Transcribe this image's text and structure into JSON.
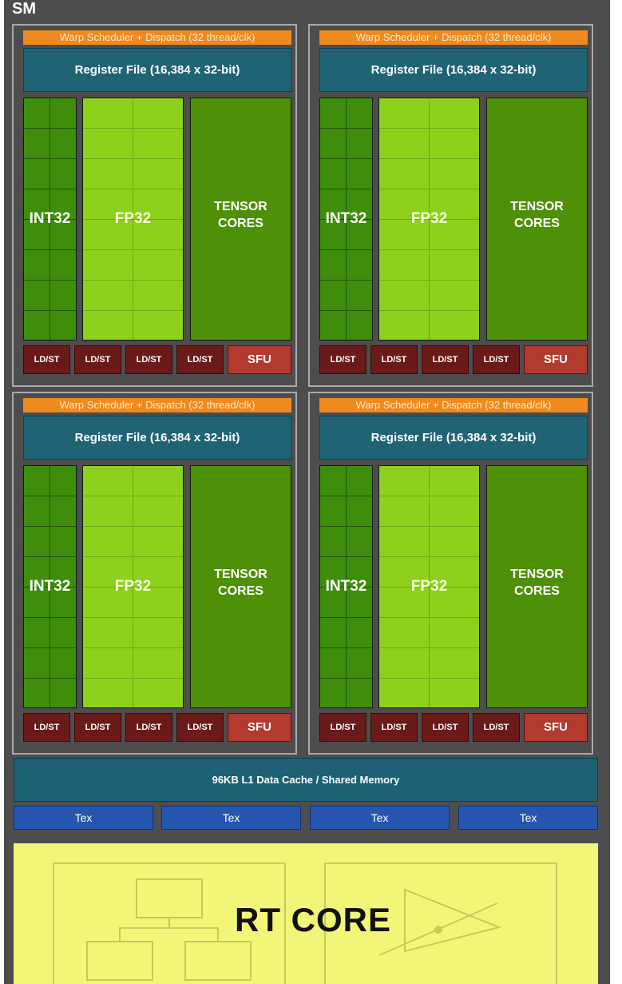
{
  "sm_label": "SM",
  "partition": {
    "warp_scheduler": "Warp Scheduler + Dispatch (32 thread/clk)",
    "register_file": "Register File (16,384 x 32-bit)",
    "int32": "INT32",
    "fp32": "FP32",
    "tensor_line1": "TENSOR",
    "tensor_line2": "CORES",
    "ldst": "LD/ST",
    "sfu": "SFU"
  },
  "l1_cache": "96KB L1 Data Cache / Shared Memory",
  "tex": [
    "Tex",
    "Tex",
    "Tex",
    "Tex"
  ],
  "rt_core": "RT CORE",
  "colors": {
    "background": "#4d4d4d",
    "warp": "#ef8a1f",
    "register_file": "#1f6375",
    "int32": "#3e8e0c",
    "fp32": "#8ed11c",
    "tensor": "#4e9008",
    "ldst": "#6b1a1a",
    "sfu": "#b33a2e",
    "tex": "#2456b0",
    "rt_core": "#f2f678"
  }
}
